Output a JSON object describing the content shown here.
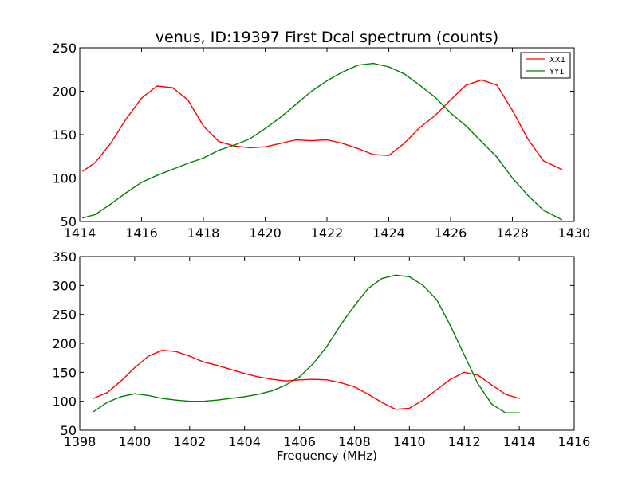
{
  "chart_data": [
    {
      "type": "line",
      "title": "venus, ID:19397 First Dcal spectrum (counts)",
      "xlabel": "",
      "ylabel": "",
      "xlim": [
        1414,
        1430
      ],
      "ylim": [
        50,
        250
      ],
      "xticks": [
        1414,
        1416,
        1418,
        1420,
        1422,
        1424,
        1426,
        1428,
        1430
      ],
      "yticks": [
        50,
        100,
        150,
        200,
        250
      ],
      "legend": "top-right",
      "series": [
        {
          "name": "XX1",
          "color": "#ff0000",
          "x": [
            1414.1,
            1414.5,
            1415.0,
            1415.5,
            1416.0,
            1416.5,
            1417.0,
            1417.5,
            1418.0,
            1418.5,
            1419.0,
            1419.5,
            1420.0,
            1420.5,
            1421.0,
            1421.5,
            1422.0,
            1422.5,
            1423.0,
            1423.5,
            1424.0,
            1424.5,
            1425.0,
            1425.5,
            1426.0,
            1426.5,
            1427.0,
            1427.5,
            1428.0,
            1428.5,
            1429.0,
            1429.6
          ],
          "y": [
            108,
            118,
            140,
            168,
            192,
            206,
            204,
            190,
            160,
            142,
            137,
            135,
            136,
            140,
            144,
            143,
            144,
            140,
            134,
            127,
            126,
            140,
            158,
            172,
            190,
            207,
            213,
            207,
            178,
            145,
            120,
            110
          ]
        },
        {
          "name": "YY1",
          "color": "#008000",
          "x": [
            1414.1,
            1414.5,
            1415.0,
            1415.5,
            1416.0,
            1416.5,
            1417.0,
            1417.5,
            1418.0,
            1418.5,
            1419.0,
            1419.5,
            1420.0,
            1420.5,
            1421.0,
            1421.5,
            1422.0,
            1422.5,
            1423.0,
            1423.5,
            1424.0,
            1424.5,
            1425.0,
            1425.5,
            1426.0,
            1426.5,
            1427.0,
            1427.5,
            1428.0,
            1428.5,
            1429.0,
            1429.6
          ],
          "y": [
            54,
            58,
            70,
            83,
            95,
            103,
            110,
            117,
            123,
            132,
            138,
            145,
            157,
            170,
            185,
            200,
            212,
            222,
            230,
            232,
            228,
            220,
            207,
            193,
            175,
            160,
            142,
            124,
            100,
            80,
            63,
            52
          ]
        }
      ]
    },
    {
      "type": "line",
      "title": "",
      "xlabel": "Frequency (MHz)",
      "ylabel": "",
      "xlim": [
        1398,
        1416
      ],
      "ylim": [
        50,
        350
      ],
      "xticks": [
        1398,
        1400,
        1402,
        1404,
        1406,
        1408,
        1410,
        1412,
        1414,
        1416
      ],
      "yticks": [
        50,
        100,
        150,
        200,
        250,
        300,
        350
      ],
      "series": [
        {
          "name": "XX1",
          "color": "#ff0000",
          "x": [
            1398.5,
            1399.0,
            1399.5,
            1400.0,
            1400.5,
            1401.0,
            1401.5,
            1402.0,
            1402.5,
            1403.0,
            1403.5,
            1404.0,
            1404.5,
            1405.0,
            1405.5,
            1406.0,
            1406.5,
            1407.0,
            1407.5,
            1408.0,
            1408.5,
            1409.0,
            1409.5,
            1410.0,
            1410.5,
            1411.0,
            1411.5,
            1412.0,
            1412.5,
            1413.0,
            1413.5,
            1414.0
          ],
          "y": [
            105,
            115,
            135,
            158,
            178,
            188,
            186,
            178,
            168,
            162,
            155,
            148,
            142,
            138,
            135,
            137,
            138,
            137,
            132,
            125,
            112,
            98,
            86,
            88,
            102,
            120,
            138,
            150,
            145,
            128,
            112,
            105
          ]
        },
        {
          "name": "YY1",
          "color": "#008000",
          "x": [
            1398.5,
            1399.0,
            1399.5,
            1400.0,
            1400.5,
            1401.0,
            1401.5,
            1402.0,
            1402.5,
            1403.0,
            1403.5,
            1404.0,
            1404.5,
            1405.0,
            1405.5,
            1406.0,
            1406.5,
            1407.0,
            1407.5,
            1408.0,
            1408.5,
            1409.0,
            1409.5,
            1410.0,
            1410.5,
            1411.0,
            1411.5,
            1412.0,
            1412.5,
            1413.0,
            1413.5,
            1414.0
          ],
          "y": [
            82,
            98,
            108,
            113,
            110,
            105,
            102,
            100,
            100,
            102,
            105,
            108,
            112,
            118,
            128,
            142,
            165,
            195,
            232,
            265,
            295,
            312,
            318,
            315,
            300,
            275,
            230,
            180,
            130,
            95,
            80,
            80
          ]
        }
      ]
    }
  ]
}
